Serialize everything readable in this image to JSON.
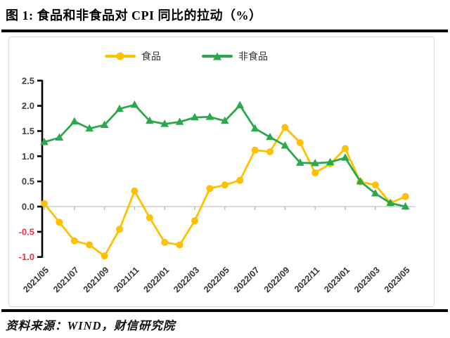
{
  "figure_title": "图 1:  食品和非食品对 CPI 同比的拉动（%）",
  "source_note": "资料来源：WIND，财信研究院",
  "colors": {
    "food": "#FFC000",
    "nonfood": "#2BA84C",
    "tick_label": "#404040",
    "negative_tick_label": "#F43040",
    "x_tick_label": "#333333",
    "axis": "#000000",
    "gridline": "#D9D9D9",
    "x_tick_mark": "#C0C0C0",
    "box_border": "#D9D9D9"
  },
  "chart_data": {
    "type": "line",
    "title": "图 1:  食品和非食品对 CPI 同比的拉动（%）",
    "xlabel": "",
    "ylabel": "",
    "ylim": [
      -1.0,
      2.5
    ],
    "y_ticks": [
      2.5,
      2.0,
      1.5,
      1.0,
      0.5,
      0.0,
      -0.5,
      -1.0
    ],
    "grid": "zero-line-only",
    "legend_position": "top-center",
    "x": [
      "2021/05",
      "2021/06",
      "2021/07",
      "2021/08",
      "2021/09",
      "2021/10",
      "2021/11",
      "2021/12",
      "2022/01",
      "2022/02",
      "2022/03",
      "2022/04",
      "2022/05",
      "2022/06",
      "2022/07",
      "2022/08",
      "2022/09",
      "2022/10",
      "2022/11",
      "2022/12",
      "2023/01",
      "2023/02",
      "2023/03",
      "2023/04",
      "2023/05"
    ],
    "x_tick_labels": [
      "2021/05",
      "2021/07",
      "2021/09",
      "2021/11",
      "2022/01",
      "2022/03",
      "2022/05",
      "2022/07",
      "2022/09",
      "2022/11",
      "2023/01",
      "2023/03",
      "2023/05"
    ],
    "series": [
      {
        "name": "食品",
        "marker": "circle",
        "color": "#FFC000",
        "values": [
          0.06,
          -0.31,
          -0.68,
          -0.76,
          -0.98,
          -0.45,
          0.31,
          -0.22,
          -0.71,
          -0.76,
          -0.28,
          0.36,
          0.43,
          0.52,
          1.12,
          1.09,
          1.57,
          1.27,
          0.67,
          0.85,
          1.15,
          0.49,
          0.43,
          0.07,
          0.2
        ]
      },
      {
        "name": "非食品",
        "marker": "triangle",
        "color": "#2BA84C",
        "values": [
          1.28,
          1.37,
          1.69,
          1.55,
          1.62,
          1.94,
          2.02,
          1.7,
          1.64,
          1.68,
          1.77,
          1.78,
          1.7,
          2.01,
          1.55,
          1.38,
          1.21,
          0.87,
          0.86,
          0.88,
          0.97,
          0.5,
          0.26,
          0.07,
          0.0
        ]
      }
    ]
  }
}
